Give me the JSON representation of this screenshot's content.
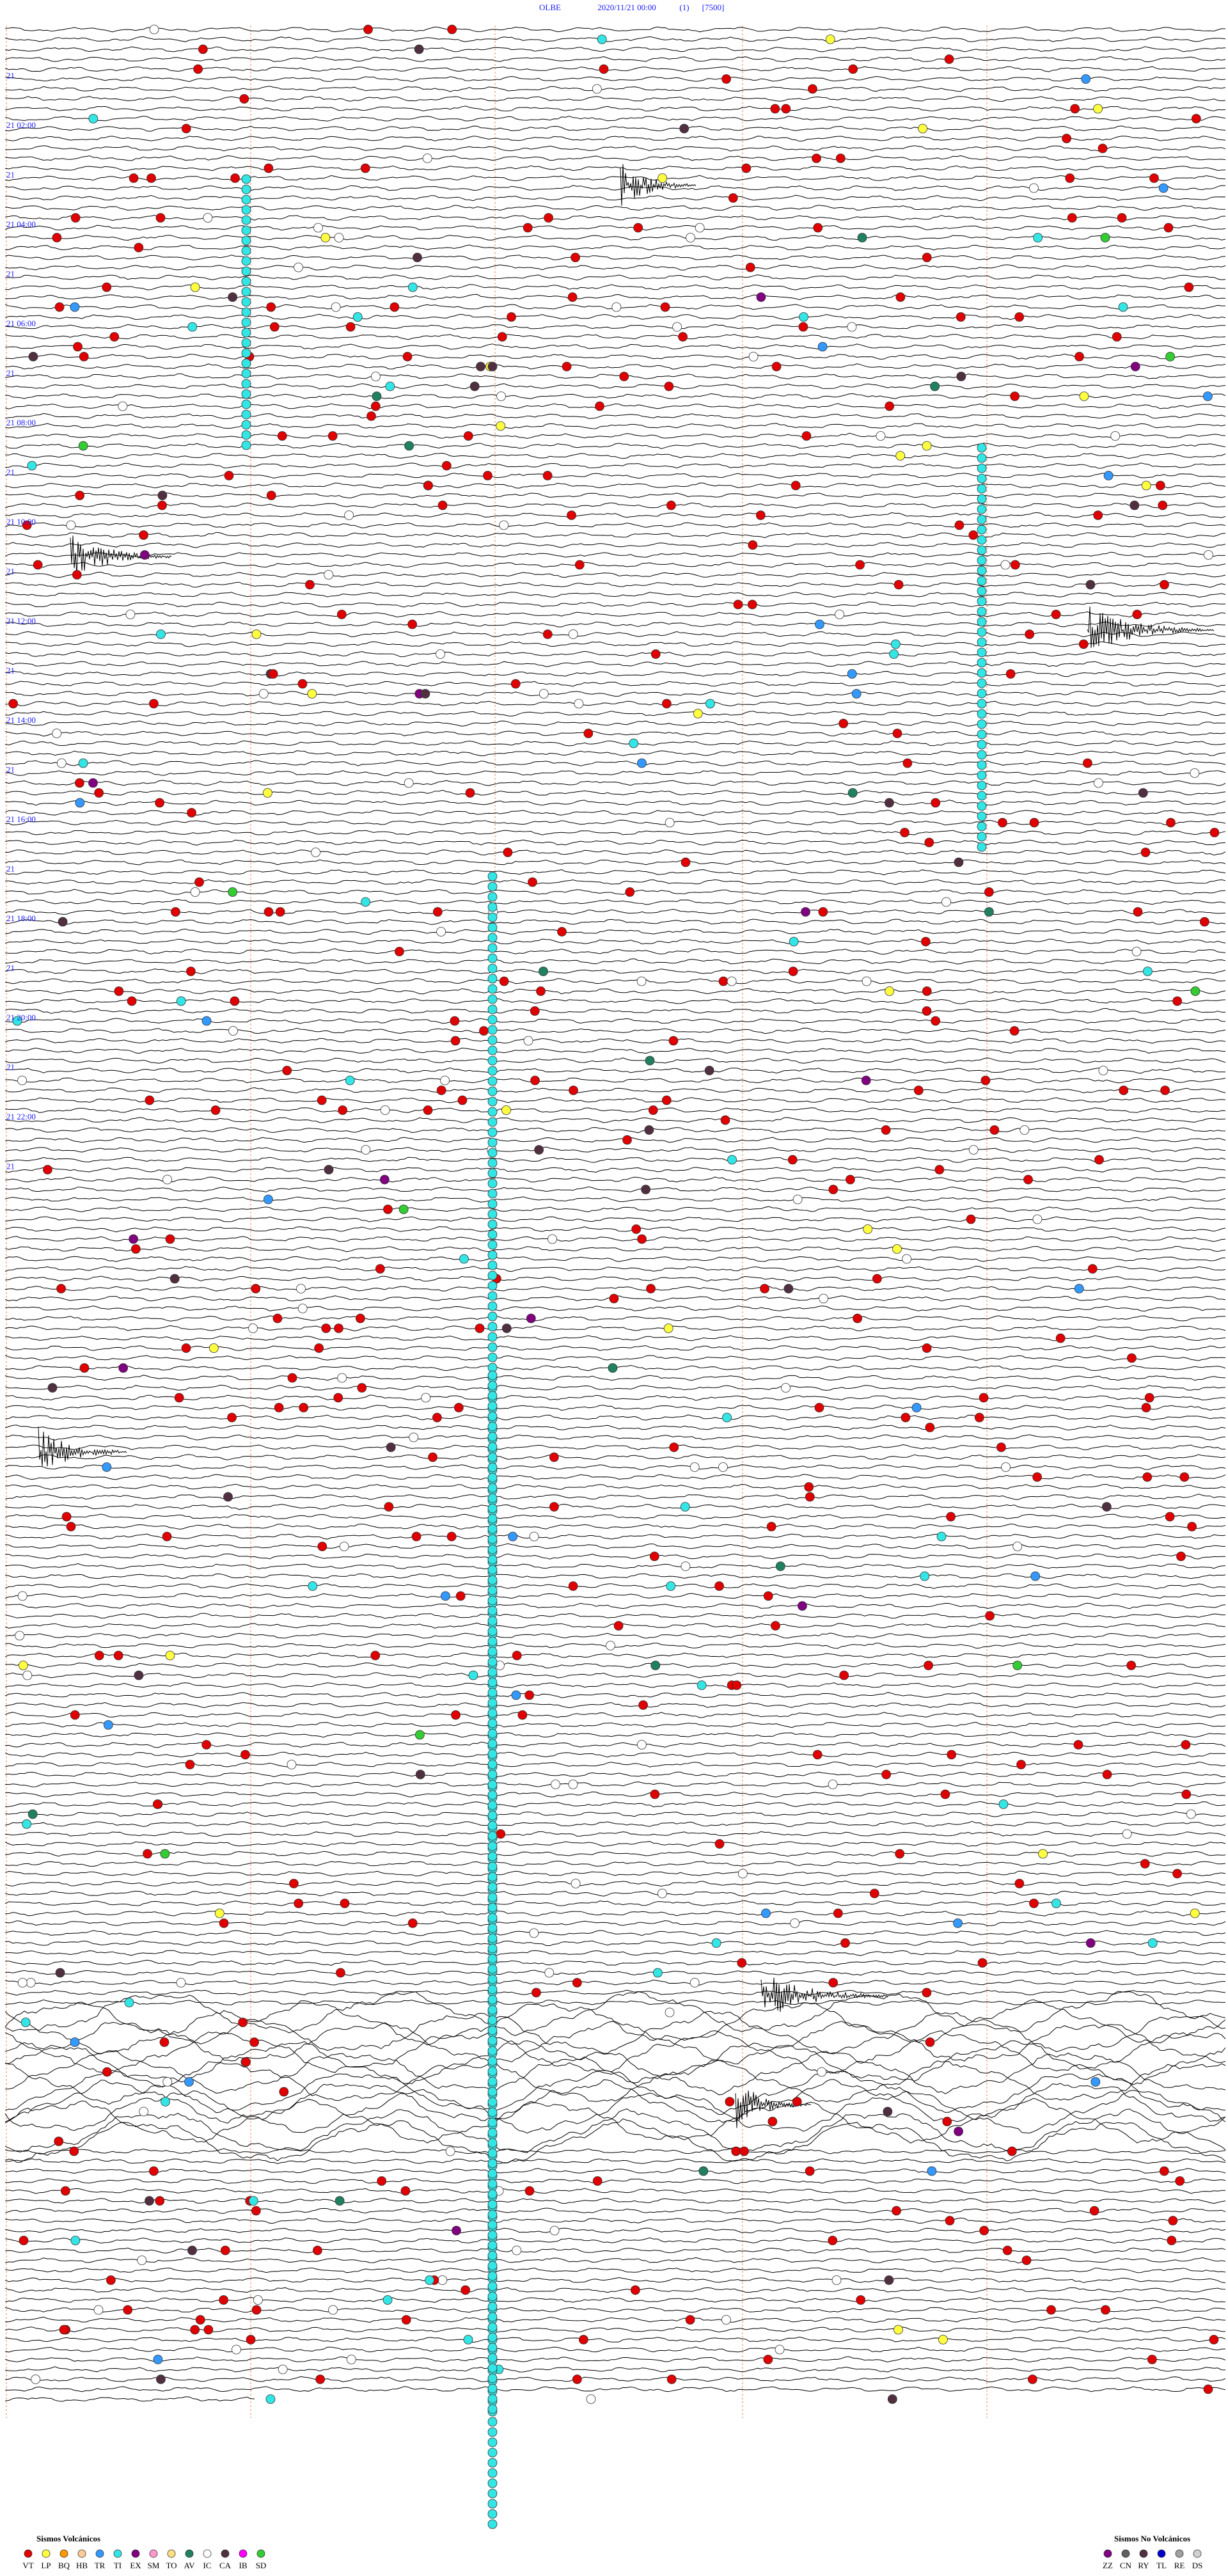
{
  "header": {
    "station": "OLBE",
    "datetime": "2020/11/21 00:00",
    "channel": "(1)",
    "scale": "[7500]"
  },
  "hour_labels": [
    "21 02:00",
    "21 04:00",
    "21 06:00",
    "21 08:00",
    "21 10:00",
    "21 12:00",
    "21 14:00",
    "21 16:00",
    "21 18:00",
    "21 20:00",
    "21 22:00"
  ],
  "minor_hour_labels": [
    "21",
    "21",
    "21",
    "21",
    "21",
    "21",
    "21",
    "21",
    "21",
    "21",
    "21",
    "21"
  ],
  "legend_volcanic": {
    "title": "Sismos Volcánicos",
    "items": [
      {
        "code": "VT",
        "color": "#e00000"
      },
      {
        "code": "LP",
        "color": "#ffff40"
      },
      {
        "code": "BQ",
        "color": "#ff9900"
      },
      {
        "code": "HB",
        "color": "#ffcc99"
      },
      {
        "code": "TR",
        "color": "#3399ff"
      },
      {
        "code": "TI",
        "color": "#33e6e6"
      },
      {
        "code": "EX",
        "color": "#800080"
      },
      {
        "code": "SM",
        "color": "#ff99cc"
      },
      {
        "code": "TO",
        "color": "#ffe080"
      },
      {
        "code": "AV",
        "color": "#208060"
      },
      {
        "code": "IC",
        "color": "#ffffff"
      },
      {
        "code": "CA",
        "color": "#503040"
      },
      {
        "code": "IB",
        "color": "#ff00ff"
      },
      {
        "code": "SD",
        "color": "#33cc33"
      }
    ]
  },
  "legend_nonvolcanic": {
    "title": "Sismos No Volcánicos",
    "items": [
      {
        "code": "ZZ",
        "color": "#800080"
      },
      {
        "code": "CN",
        "color": "#606060"
      },
      {
        "code": "RY",
        "color": "#503040"
      },
      {
        "code": "TL",
        "color": "#0000cc"
      },
      {
        "code": "RE",
        "color": "#a0a0a0"
      },
      {
        "code": "DS",
        "color": "#d0d0d0"
      }
    ]
  }
}
